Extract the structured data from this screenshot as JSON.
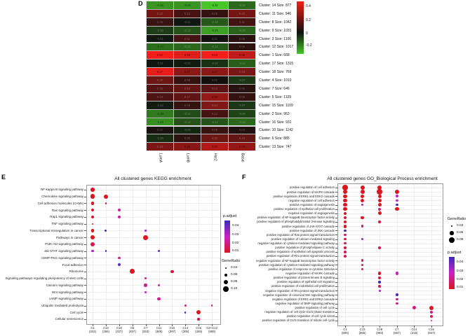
{
  "labels": {
    "d": "D",
    "e": "E",
    "f": "F"
  },
  "chart_data": [
    {
      "id": "subtype-heatmap",
      "type": "heatmap",
      "columns": [
        "LumA",
        "LumB",
        "Her2",
        "Basal"
      ],
      "rows": [
        "Cluster: 14 Size: 877",
        "Cluster: 11 Size: 946",
        "Cluster: 8 Size: 1042",
        "Cluster: 9 Size: 1031",
        "Cluster: 3 Size: 1106",
        "Cluster: 12 Size: 1017",
        "Cluster: 1 Size: 668",
        "Cluster: 17 Size: 1315",
        "Cluster: 18 Size: 769",
        "Cluster: 4 Size: 1010",
        "Cluster: 7 Size: 646",
        "Cluster: 5 Size: 1109",
        "Cluster: 15 Size: 1109",
        "Cluster: 2 Size: 963",
        "Cluster: 16 Size: 931",
        "Cluster: 10 Size: 1142",
        "Cluster: 6 Size: 885",
        "Cluster: 13 Size: 747"
      ],
      "values": [
        [
          -0.24,
          -0.24,
          -0.35,
          -0.16
        ],
        [
          0.22,
          0.12,
          0.08,
          0.22
        ],
        [
          0.09,
          -0.01,
          -0.13,
          0.11
        ],
        [
          -0.08,
          -0.12,
          -0.26,
          -0.15
        ],
        [
          -0.01,
          0.11,
          0.01,
          0.05
        ],
        [
          -0.17,
          -0.16,
          -0.13,
          0.06
        ],
        [
          0.52,
          0.45,
          0.53,
          0.38
        ],
        [
          -0.01,
          -0.02,
          -0.06,
          -0.14
        ],
        [
          0.47,
          0.27,
          0.27,
          0.23
        ],
        [
          0.2,
          0.08,
          0.01,
          -0.07
        ],
        [
          0.15,
          0.18,
          0.16,
          0.05
        ],
        [
          0.13,
          0.17,
          0.29,
          0.08
        ],
        [
          -0.02,
          0.08,
          0.24,
          -0.07
        ],
        [
          -0.19,
          -0.11,
          0.12,
          -0.09
        ],
        [
          -0.23,
          -0.12,
          -0.12,
          -0.16
        ],
        [
          0.02,
          -0.04,
          0.09,
          0.04
        ],
        [
          -0.05,
          0.06,
          0.2,
          0.18
        ],
        [
          0.23,
          0.26,
          0.35,
          0.29
        ]
      ],
      "colorbar_ticks": [
        "0.4",
        "0.2",
        "0",
        "-0.2"
      ],
      "color_scale": {
        "positive": "#f51f17",
        "zero": "#101010",
        "negative": "#48c628",
        "max": 0.5,
        "min": -0.33
      }
    },
    {
      "id": "kegg-dotplot",
      "type": "scatter",
      "title": "All clustered genes KEGG enrichment",
      "ylabels": [
        "NF-kappa B signaling pathway",
        "Chemokine signaling pathway",
        "Cell adhesion molecules (CAMs)",
        "Ras signaling pathway",
        "Rap1 signaling pathway",
        "TNF signaling pathway",
        "Transcriptional misregulation in cancer",
        "Pathways in cancer",
        "PI3K-Akt signaling pathway",
        "Jak-STAT signaling pathway",
        "cGMP-PKG signaling pathway",
        "Focal adhesion",
        "Ribosome",
        "Signaling pathways regulating pluripotency of stem cells",
        "Calcium signaling pathway",
        "Wnt signaling pathway",
        "cAMP signaling pathway",
        "Ubiquitin mediated proteolysis",
        "Cell cycle",
        "Cellular senescence"
      ],
      "xlabels": [
        [
          "C1",
          "(334)"
        ],
        [
          "C13",
          "(365)"
        ],
        [
          "C18",
          "(327)"
        ],
        [
          "C5",
          "(457)"
        ],
        [
          "C7",
          "(253)"
        ],
        [
          "C11",
          "(389)"
        ],
        [
          "C15",
          "(397)"
        ],
        [
          "C14",
          "(305)"
        ],
        [
          "C16",
          "(345)"
        ],
        [
          "C2+C12",
          "(699)"
        ]
      ],
      "points": [
        [
          0,
          0,
          0.07,
          0.01
        ],
        [
          1,
          0,
          0.09,
          0.01
        ],
        [
          1,
          1,
          0.08,
          0.01
        ],
        [
          2,
          0,
          0.065,
          0.01
        ],
        [
          2,
          1,
          0.04,
          0.012
        ],
        [
          3,
          0,
          0.06,
          0.01
        ],
        [
          3,
          2,
          0.06,
          0.022
        ],
        [
          4,
          0,
          0.06,
          0.01
        ],
        [
          4,
          2,
          0.055,
          0.022
        ],
        [
          5,
          0,
          0.035,
          0.012
        ],
        [
          6,
          0,
          0.06,
          0.01
        ],
        [
          6,
          1,
          0.045,
          0.038
        ],
        [
          6,
          4,
          0.035,
          0.028
        ],
        [
          7,
          0,
          0.085,
          0.01
        ],
        [
          7,
          4,
          0.09,
          0.01
        ],
        [
          8,
          0,
          0.08,
          0.014
        ],
        [
          9,
          0,
          0.045,
          0.027
        ],
        [
          9,
          1,
          0.04,
          0.04
        ],
        [
          9,
          5,
          0.04,
          0.033
        ],
        [
          10,
          2,
          0.05,
          0.018
        ],
        [
          11,
          2,
          0.06,
          0.036
        ],
        [
          12,
          3,
          0.09,
          0.01
        ],
        [
          12,
          6,
          0.06,
          0.012
        ],
        [
          13,
          4,
          0.045,
          0.018
        ],
        [
          14,
          4,
          0.06,
          0.02
        ],
        [
          14,
          5,
          0.05,
          0.02
        ],
        [
          15,
          4,
          0.045,
          0.025
        ],
        [
          16,
          5,
          0.06,
          0.02
        ],
        [
          17,
          7,
          0.05,
          0.02
        ],
        [
          17,
          9,
          0.035,
          0.02
        ],
        [
          18,
          7,
          0.035,
          0.04
        ],
        [
          18,
          8,
          0.08,
          0.01
        ],
        [
          19,
          8,
          0.05,
          0.012
        ]
      ],
      "legend": {
        "p_title": "p.adjust",
        "p_ticks": [
          "0.04",
          "0.03",
          "0.02",
          "0.01"
        ],
        "size_title": "GeneRatio",
        "sizes": [
          "0.04",
          "0.06",
          "0.08",
          "0.10"
        ]
      }
    },
    {
      "id": "go-dotplot",
      "type": "scatter",
      "title": "All clustered genes GO_Biological Process enrichment",
      "ylabels": [
        "positive regulation of cell adhesion",
        "positive regulation of MAPK cascade",
        "positive regulation of ERK1 and ERK2 cascade",
        "negative regulation of cell adhesion",
        "positive regulation of angiogenesis",
        "positive regulation of epithelial cell proliferation",
        "negative regulation of angiogenesis",
        "positive regulation of NF-kappaB transcription factor activity",
        "positive regulation of phosphatidylinositol 3-kinase signaling",
        "positive regulation of JAK-STAT cascade",
        "positive regulation of JNK cascade",
        "positive regulation of Ras protein signal transduction",
        "positive regulation of calcium-mediated signaling",
        "negative regulation of cytokine-mediated signaling pathway",
        "positive regulation of phospholipase C activity",
        "positive regulation of epithelial cell apoptotic process",
        "positive regulation of Rho protein signal transduction",
        "negative regulation of NF-kappaB transcription factor activity",
        "positive regulation of cytokine-mediated signaling pathway",
        "positive regulation of response to cytokine stimulus",
        "negative regulation of MAPK cascade",
        "positive regulation of protein kinase B signaling",
        "positive regulation of epithelial cell migration",
        "positive regulation of endothelial cell proliferation",
        "negative regulation of Rho protein signal transduction",
        "negative regulation of canonical Wnt signaling pathway",
        "negative regulation of ERK1 and ERK2 cascade",
        "negative regulation of BMP signaling pathway",
        "positive regulation of cell cycle",
        "negative regulation of cell cycle G1/S phase transition",
        "positive regulation of cell cycle arrest",
        "positive regulation of G1/S transition of mitotic cell cycle"
      ],
      "xlabels": [
        [
          "C1",
          "(605)"
        ],
        [
          "C13",
          "(565)"
        ],
        [
          "C18",
          "(683)"
        ],
        [
          "C7",
          "(567)"
        ],
        [
          "C14",
          "(315)"
        ],
        [
          "C16",
          "(847)"
        ]
      ],
      "points": [
        [
          0,
          0,
          0.09,
          0.01
        ],
        [
          0,
          1,
          0.07,
          0.01
        ],
        [
          0,
          2,
          0.07,
          0.01
        ],
        [
          1,
          0,
          0.07,
          0.01
        ],
        [
          1,
          1,
          0.07,
          0.01
        ],
        [
          1,
          2,
          0.09,
          0.01
        ],
        [
          1,
          3,
          0.07,
          0.01
        ],
        [
          2,
          0,
          0.06,
          0.01
        ],
        [
          2,
          1,
          0.06,
          0.01
        ],
        [
          2,
          2,
          0.06,
          0.01
        ],
        [
          2,
          3,
          0.04,
          0.025
        ],
        [
          3,
          0,
          0.06,
          0.01
        ],
        [
          3,
          1,
          0.065,
          0.01
        ],
        [
          3,
          2,
          0.06,
          0.01
        ],
        [
          3,
          3,
          0.04,
          0.025
        ],
        [
          4,
          0,
          0.065,
          0.01
        ],
        [
          4,
          1,
          0.04,
          0.028
        ],
        [
          4,
          2,
          0.06,
          0.01
        ],
        [
          4,
          3,
          0.04,
          0.038
        ],
        [
          5,
          0,
          0.06,
          0.01
        ],
        [
          5,
          2,
          0.045,
          0.018
        ],
        [
          5,
          3,
          0.065,
          0.01
        ],
        [
          6,
          0,
          0.045,
          0.01
        ],
        [
          6,
          2,
          0.055,
          0.01
        ],
        [
          7,
          0,
          0.055,
          0.012
        ],
        [
          7,
          1,
          0.055,
          0.01
        ],
        [
          8,
          0,
          0.045,
          0.01
        ],
        [
          8,
          2,
          0.04,
          0.014
        ],
        [
          9,
          0,
          0.055,
          0.01
        ],
        [
          9,
          1,
          0.04,
          0.014
        ],
        [
          10,
          0,
          0.04,
          0.04
        ],
        [
          11,
          0,
          0.04,
          0.014
        ],
        [
          12,
          0,
          0.04,
          0.012
        ],
        [
          12,
          1,
          0.03,
          0.028
        ],
        [
          13,
          0,
          0.04,
          0.014
        ],
        [
          14,
          0,
          0.04,
          0.012
        ],
        [
          14,
          2,
          0.04,
          0.014
        ],
        [
          15,
          0,
          0.04,
          0.014
        ],
        [
          16,
          0,
          0.04,
          0.014
        ],
        [
          17,
          1,
          0.04,
          0.014
        ],
        [
          18,
          1,
          0.04,
          0.014
        ],
        [
          19,
          1,
          0.04,
          0.014
        ],
        [
          20,
          2,
          0.05,
          0.012
        ],
        [
          20,
          3,
          0.05,
          0.024
        ],
        [
          21,
          2,
          0.05,
          0.012
        ],
        [
          22,
          2,
          0.04,
          0.04
        ],
        [
          23,
          2,
          0.04,
          0.014
        ],
        [
          24,
          2,
          0.03,
          0.028
        ],
        [
          25,
          3,
          0.04,
          0.038
        ],
        [
          26,
          3,
          0.04,
          0.02
        ],
        [
          27,
          3,
          0.04,
          0.02
        ],
        [
          28,
          4,
          0.055,
          0.018
        ],
        [
          28,
          5,
          0.07,
          0.01
        ],
        [
          29,
          5,
          0.045,
          0.018
        ],
        [
          30,
          5,
          0.045,
          0.014
        ],
        [
          31,
          5,
          0.03,
          0.02
        ]
      ],
      "legend": {
        "size_title": "GeneRatio",
        "sizes": [
          "0.03",
          "0.06",
          "0.09"
        ],
        "p_title": "p.adjust",
        "p_ticks": [
          "0.04",
          "0.03",
          "0.02",
          "0.01"
        ]
      }
    }
  ]
}
